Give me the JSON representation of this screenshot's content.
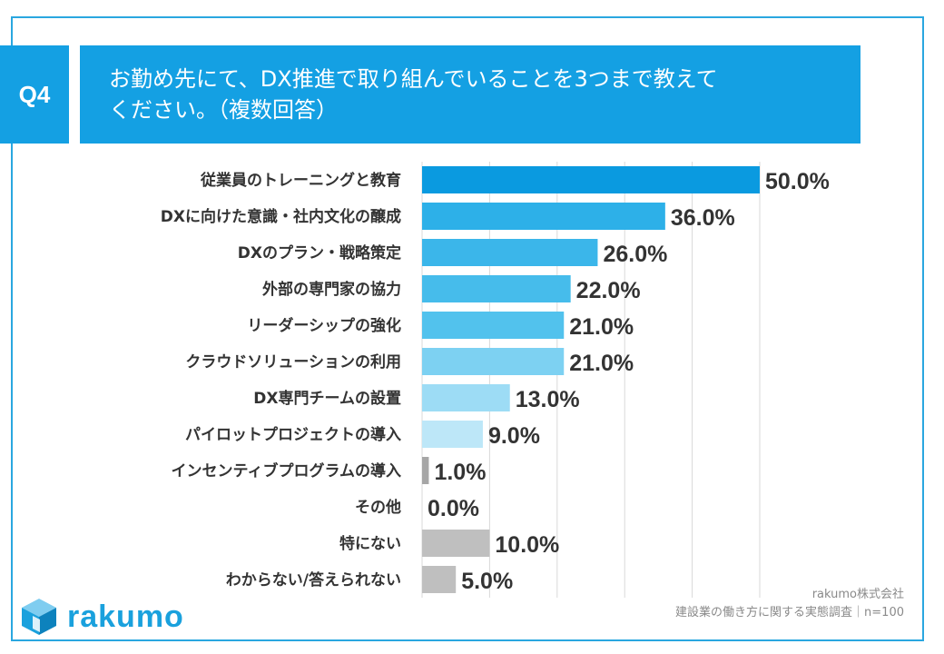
{
  "question": {
    "tag": "Q4",
    "line1": "お勤め先にて、DX推進で取り組んでいることを3つまで教えて",
    "line2": "ください。（複数回答）"
  },
  "chart_data": {
    "type": "bar",
    "orientation": "horizontal",
    "title": "お勤め先にて、DX推進で取り組んでいることを3つまで教えてください。（複数回答）",
    "xlim": [
      0,
      50
    ],
    "categories": [
      "従業員のトレーニングと教育",
      "DXに向けた意識・社内文化の醸成",
      "DXのプラン・戦略策定",
      "外部の専門家の協力",
      "リーダーシップの強化",
      "クラウドソリューションの利用",
      "DX専門チームの設置",
      "パイロットプロジェクトの導入",
      "インセンティブプログラムの導入",
      "その他",
      "特にない",
      "わからない/答えられない"
    ],
    "values": [
      50.0,
      36.0,
      26.0,
      22.0,
      21.0,
      21.0,
      13.0,
      9.0,
      1.0,
      0.0,
      10.0,
      5.0
    ],
    "value_labels": [
      "50.0%",
      "36.0%",
      "26.0%",
      "22.0%",
      "21.0%",
      "21.0%",
      "13.0%",
      "9.0%",
      "1.0%",
      "0.0%",
      "10.0%",
      "5.0%"
    ],
    "colors": [
      "#0a9ae0",
      "#2db0e8",
      "#3bb6ea",
      "#46bceb",
      "#52c2ed",
      "#7dd1f2",
      "#9ddcf5",
      "#bde7f8",
      "#a6a6a6",
      "#bfbfbf",
      "#bfbfbf",
      "#bfbfbf"
    ]
  },
  "footer": {
    "company": "rakumo株式会社",
    "survey": "建設業の働き方に関する実態調査｜n=100"
  },
  "logo": {
    "text": "rakumo"
  }
}
